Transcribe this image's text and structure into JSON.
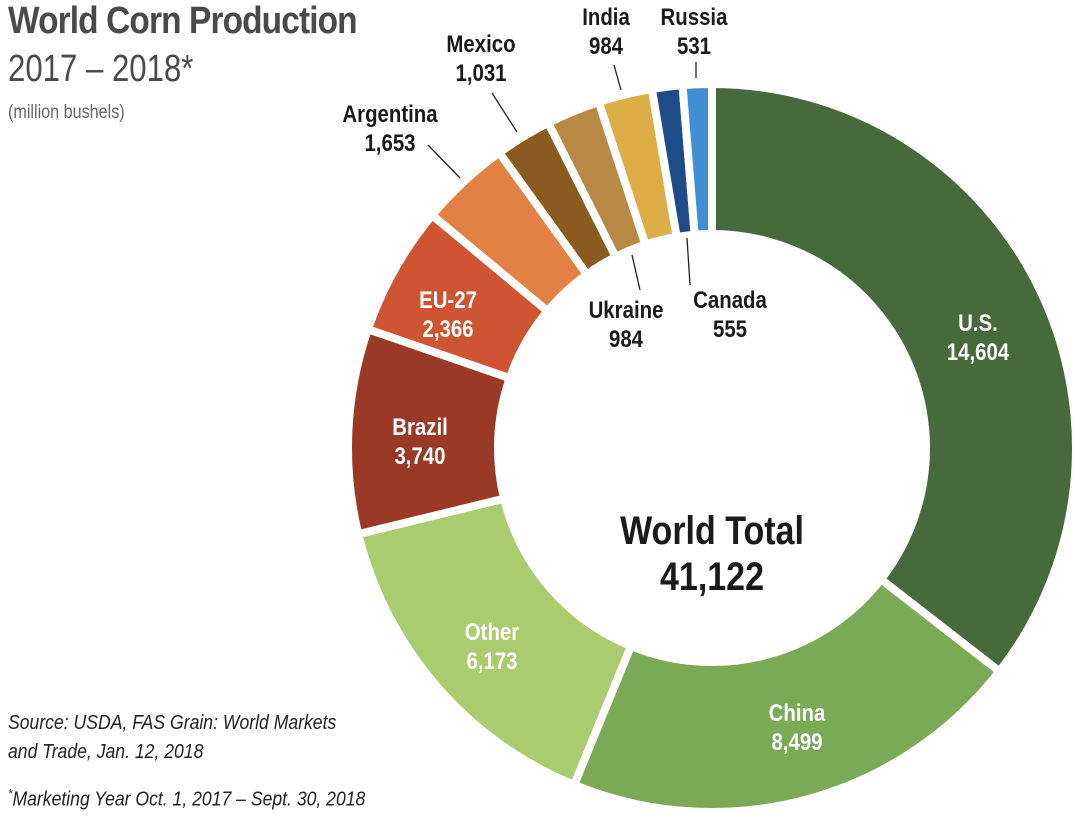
{
  "chart_data": {
    "type": "pie",
    "variant": "donut",
    "title": "World Corn Production",
    "subtitle": "2017 – 2018*",
    "unit": "(million bushels)",
    "center_label": "World Total",
    "center_value": "41,122",
    "slices": [
      {
        "name": "U.S.",
        "value": 14604,
        "label": "14,604",
        "color": "#476a3c"
      },
      {
        "name": "China",
        "value": 8499,
        "label": "8,499",
        "color": "#7aaa56"
      },
      {
        "name": "Other",
        "value": 6173,
        "label": "6,173",
        "color": "#a9cc6e"
      },
      {
        "name": "Brazil",
        "value": 3740,
        "label": "3,740",
        "color": "#9b3927"
      },
      {
        "name": "EU-27",
        "value": 2366,
        "label": "2,366",
        "color": "#cf5532"
      },
      {
        "name": "Argentina",
        "value": 1653,
        "label": "1,653",
        "color": "#e38145"
      },
      {
        "name": "Mexico",
        "value": 1031,
        "label": "1,031",
        "color": "#8a5a1f"
      },
      {
        "name": "Ukraine",
        "value": 984,
        "label": "984",
        "color": "#b88945"
      },
      {
        "name": "India",
        "value": 984,
        "label": "984",
        "color": "#ddad48"
      },
      {
        "name": "Canada",
        "value": 555,
        "label": "555",
        "color": "#1f4c87"
      },
      {
        "name": "Russia",
        "value": 531,
        "label": "531",
        "color": "#3f8fd2"
      }
    ]
  },
  "footer": {
    "source_line1": "Source: USDA, FAS Grain: World Markets",
    "source_line2": "and Trade, Jan. 12, 2018",
    "footnote_mark": "*",
    "footnote": "Marketing Year Oct. 1, 2017 – Sept. 30, 2018"
  }
}
